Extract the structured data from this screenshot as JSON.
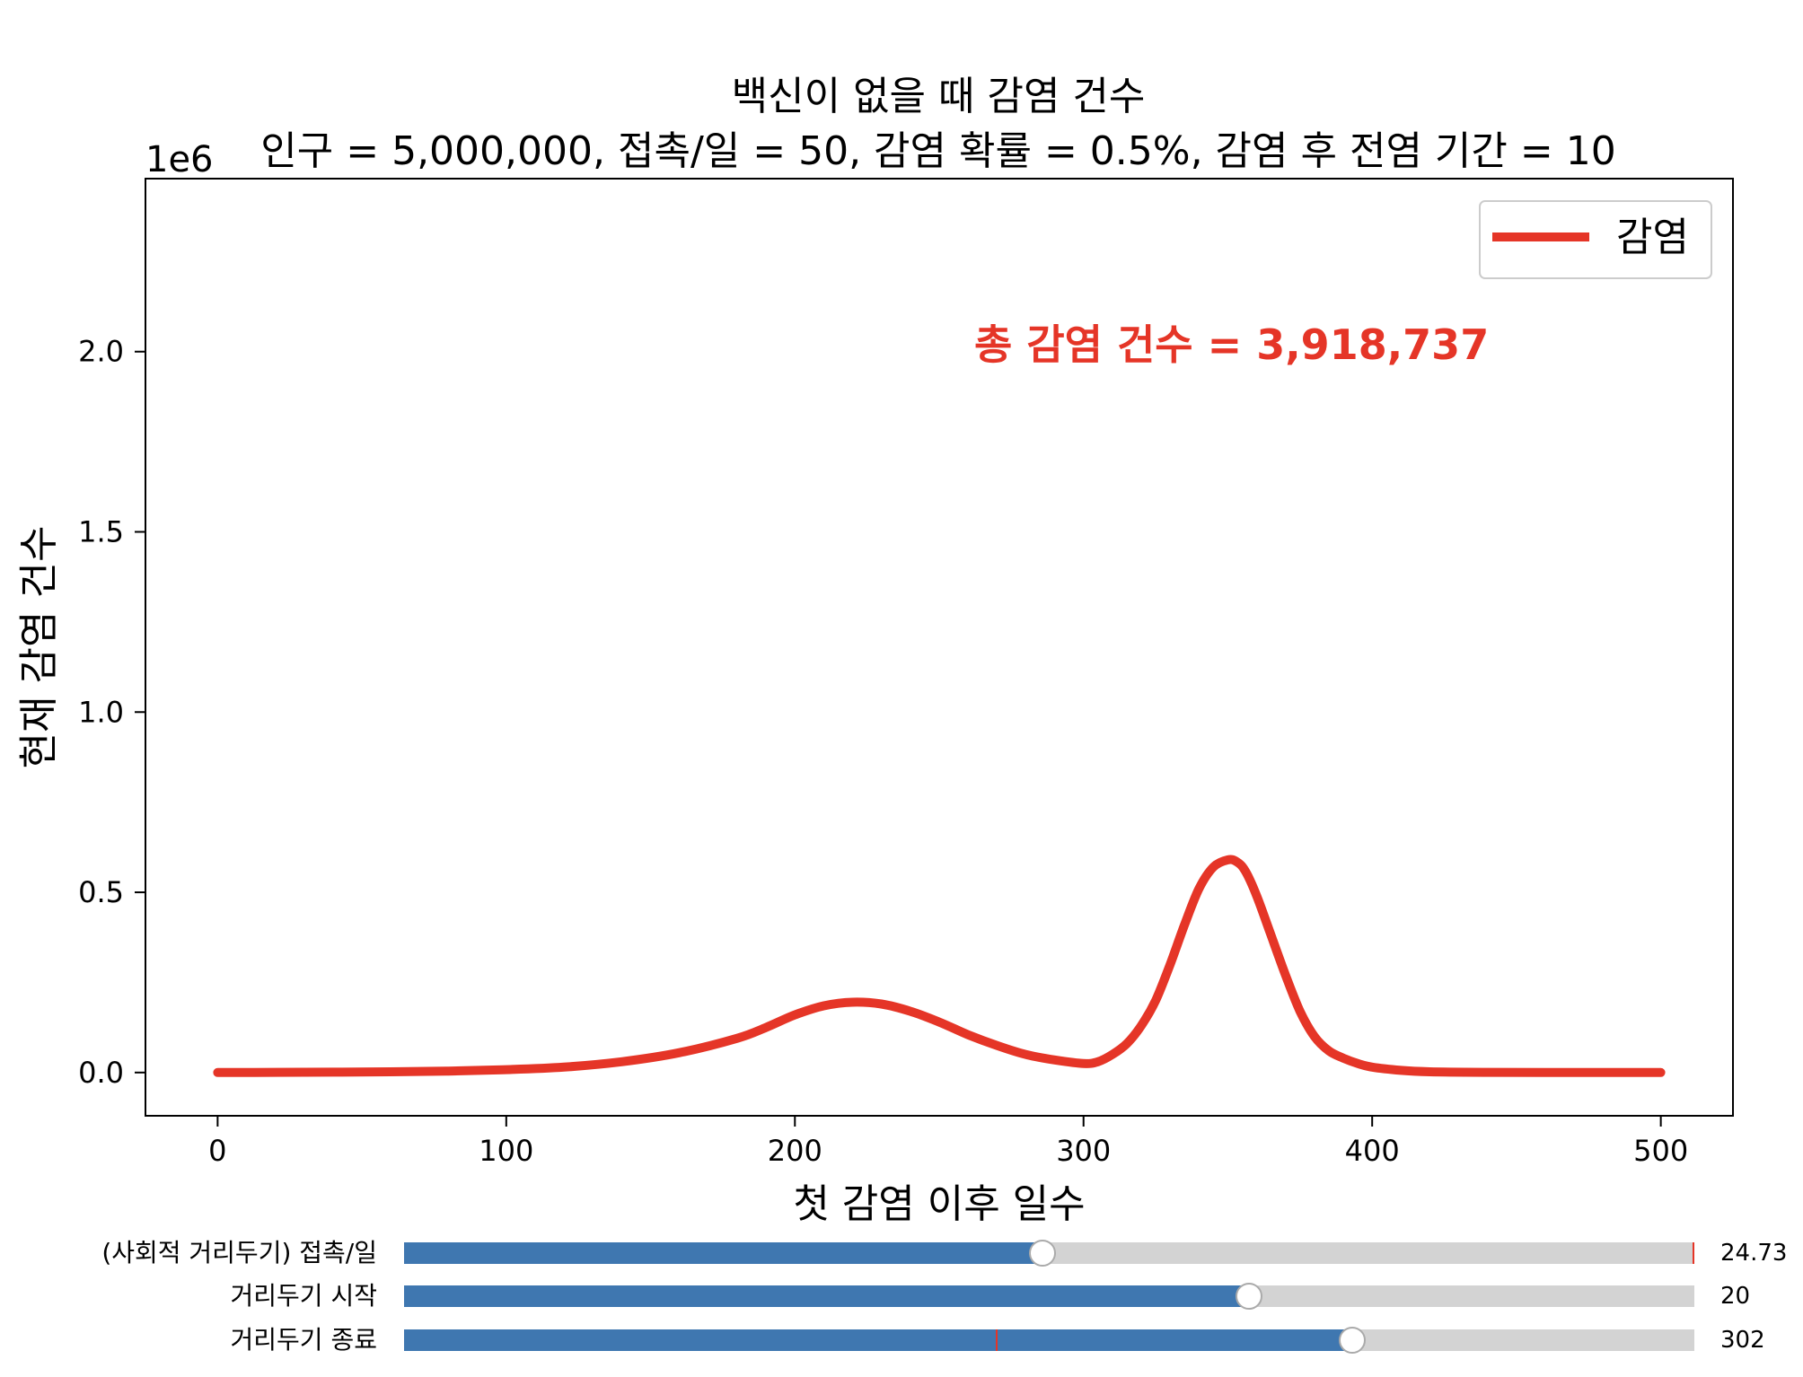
{
  "chart_data": {
    "type": "line",
    "title_line1": "백신이 없을 때 감염 건수",
    "title_line2": "인구 = 5,000,000, 접촉/일 = 50, 감염 확률 = 0.5%, 감염 후 전염 기간 = 10",
    "xlabel": "첫 감염 이후 일수",
    "ylabel": "현재 감염 건수",
    "y_offset_text": "1e6",
    "xlim": [
      -25,
      525
    ],
    "ylim": [
      -0.12,
      2.48
    ],
    "x_ticks": [
      0,
      100,
      200,
      300,
      400,
      500
    ],
    "x_tick_labels": [
      "0",
      "100",
      "200",
      "300",
      "400",
      "500"
    ],
    "y_ticks": [
      0.0,
      0.5,
      1.0,
      1.5,
      2.0
    ],
    "y_tick_labels": [
      "0.0",
      "0.5",
      "1.0",
      "1.5",
      "2.0"
    ],
    "legend": {
      "position": "upper right",
      "label": "감염"
    },
    "annotation": "총 감염 건수 = 3,918,737",
    "series": [
      {
        "name": "감염",
        "color": "#e53527",
        "x": [
          0,
          20,
          40,
          60,
          80,
          100,
          120,
          140,
          160,
          180,
          190,
          200,
          210,
          220,
          230,
          240,
          250,
          260,
          270,
          280,
          290,
          300,
          305,
          310,
          315,
          320,
          325,
          330,
          335,
          340,
          345,
          350,
          353,
          356,
          360,
          365,
          370,
          375,
          380,
          385,
          390,
          395,
          400,
          410,
          420,
          440,
          460,
          480,
          500
        ],
        "y": [
          0.0,
          0.0005,
          0.001,
          0.002,
          0.004,
          0.008,
          0.015,
          0.03,
          0.055,
          0.095,
          0.125,
          0.16,
          0.185,
          0.195,
          0.19,
          0.17,
          0.14,
          0.105,
          0.075,
          0.05,
          0.035,
          0.025,
          0.03,
          0.05,
          0.08,
          0.13,
          0.2,
          0.3,
          0.41,
          0.51,
          0.57,
          0.59,
          0.585,
          0.56,
          0.49,
          0.38,
          0.27,
          0.17,
          0.1,
          0.06,
          0.04,
          0.025,
          0.015,
          0.006,
          0.002,
          0.0005,
          0.0001,
          0.0,
          0.0
        ]
      }
    ]
  },
  "sliders": [
    {
      "label": "(사회적 거리두기) 접촉/일",
      "value_text": "24.73",
      "fraction": 0.4945,
      "init_fraction": 1.0
    },
    {
      "label": "거리두기 시작",
      "value_text": "20",
      "fraction": 0.655,
      "init_fraction": null
    },
    {
      "label": "거리두기 종료",
      "value_text": "302",
      "fraction": 0.735,
      "init_fraction": 0.46
    }
  ]
}
